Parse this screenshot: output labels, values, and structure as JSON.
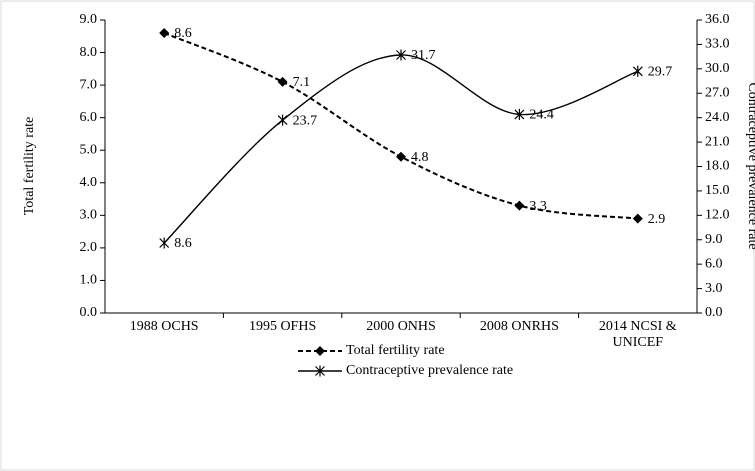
{
  "chart_data": {
    "type": "line",
    "categories": [
      "1988 OCHS",
      "1995 OFHS",
      "2000 ONHS",
      "2008 ONRHS",
      "2014 NCSI & UNICEF"
    ],
    "series": [
      {
        "name": "Total fertility rate",
        "color": "#000000",
        "values": [
          8.6,
          7.1,
          4.8,
          3.3,
          2.9
        ],
        "dashed": true,
        "marker": "diamond",
        "smooth": true
      },
      {
        "name": "Contraceptive prevalence rate",
        "color": "#000000",
        "values": [
          8.6,
          23.7,
          31.7,
          24.4,
          29.7
        ],
        "axis": "y2",
        "marker": "star",
        "smooth": true
      }
    ],
    "ylabel": "Total fertility rate",
    "y2label": "Contraceptive prevalence rate",
    "ylim": [
      0,
      9
    ],
    "yticks": [
      {
        "value": 0,
        "label": "0.0"
      },
      {
        "value": 1,
        "label": "1.0"
      },
      {
        "value": 2,
        "label": "2.0"
      },
      {
        "value": 3,
        "label": "3.0"
      },
      {
        "value": 4,
        "label": "4.0"
      },
      {
        "value": 5,
        "label": "5.0"
      },
      {
        "value": 6,
        "label": "6.0"
      },
      {
        "value": 7,
        "label": "7.0"
      },
      {
        "value": 8,
        "label": "8.0"
      },
      {
        "value": 9,
        "label": "9.0"
      }
    ],
    "y2lim": [
      0,
      36
    ],
    "y2ticks": [
      {
        "value": 0,
        "label": "0.0"
      },
      {
        "value": 3,
        "label": "3.0"
      },
      {
        "value": 6,
        "label": "6.0"
      },
      {
        "value": 9,
        "label": "9.0"
      },
      {
        "value": 12,
        "label": "12.0"
      },
      {
        "value": 15,
        "label": "15.0"
      },
      {
        "value": 18,
        "label": "18.0"
      },
      {
        "value": 21,
        "label": "21.0"
      },
      {
        "value": 24,
        "label": "24.0"
      },
      {
        "value": 27,
        "label": "27.0"
      },
      {
        "value": 30,
        "label": "30.0"
      },
      {
        "value": 33,
        "label": "33.0"
      },
      {
        "value": 36,
        "label": "36.0"
      }
    ],
    "grid": false,
    "legend": "bottom-center"
  }
}
